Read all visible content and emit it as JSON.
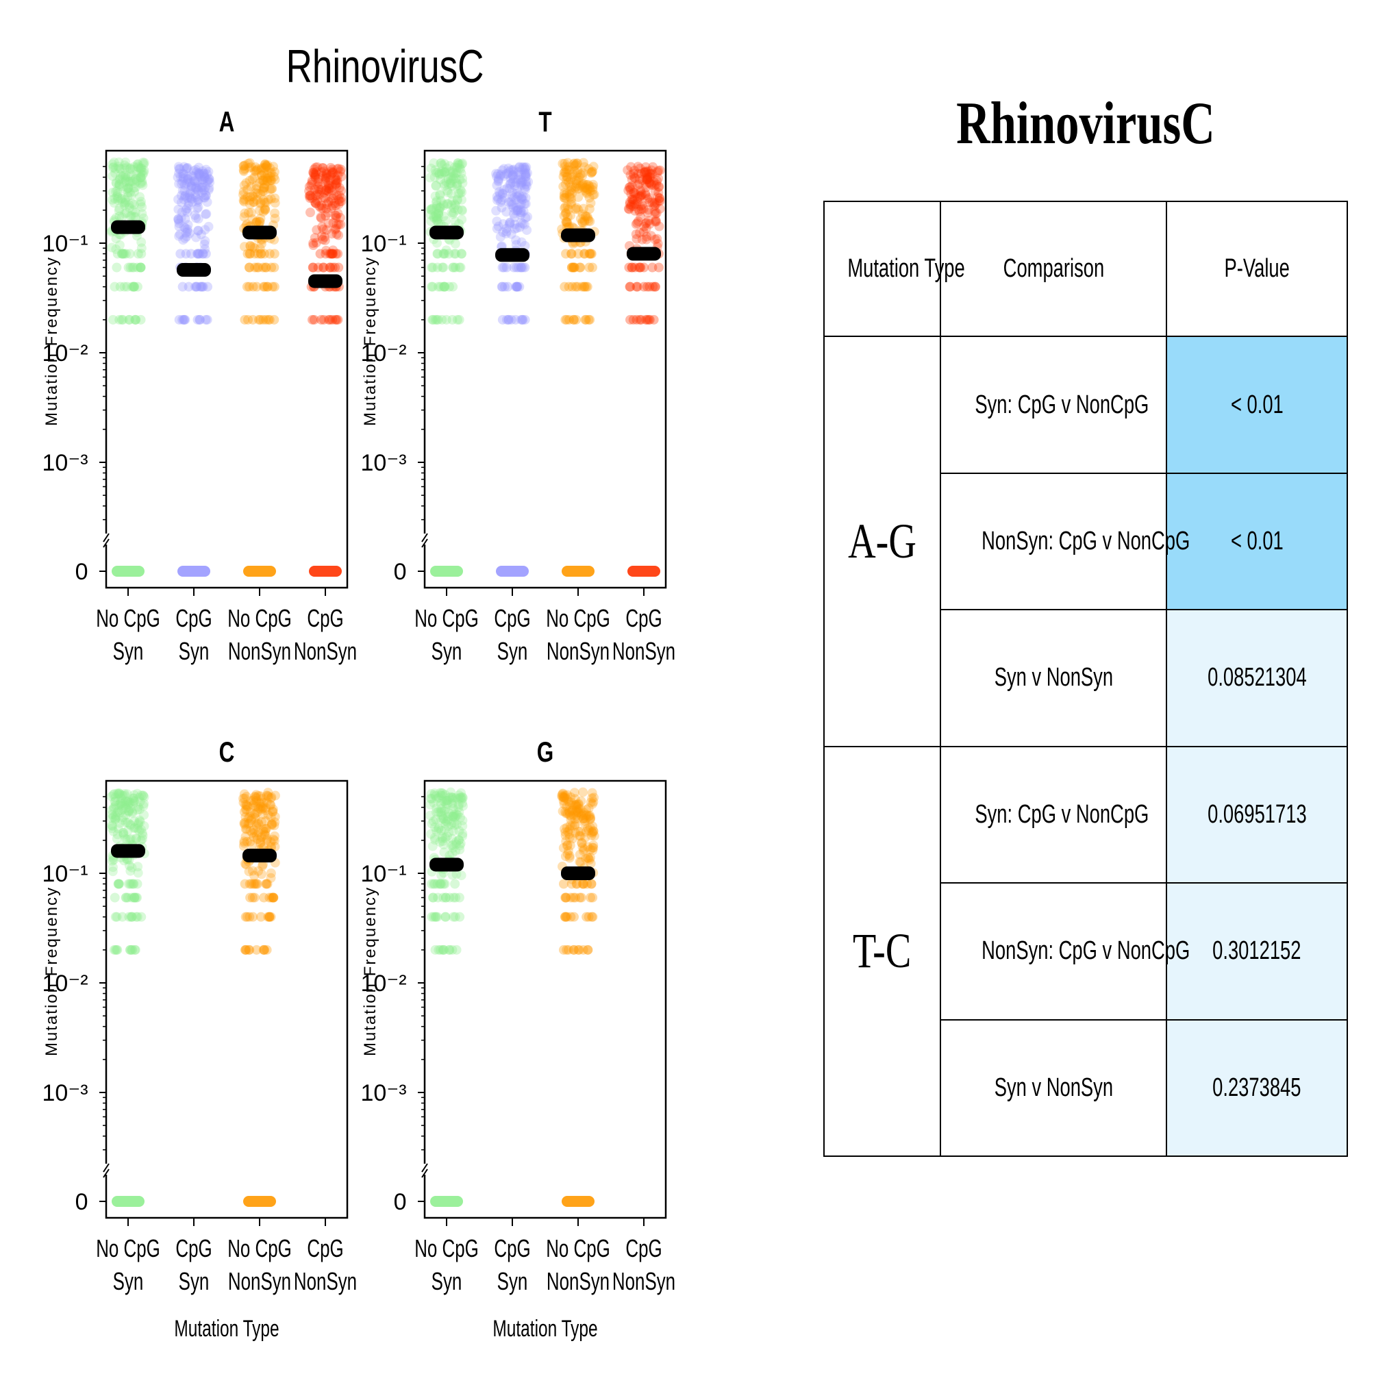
{
  "figure_title": "RhinovirusC",
  "chart_data": [
    {
      "type": "scatter",
      "title": "A",
      "ylabel": "Mutation Frequency",
      "xlabel": "",
      "yscale": "log",
      "ylim": [
        0.0002,
        0.6
      ],
      "y_ticks": [
        {
          "label": "10⁻¹"
        },
        {
          "label": "10⁻²"
        },
        {
          "label": "10⁻³"
        },
        {
          "label": "0"
        }
      ],
      "categories": [
        "No CpG Syn",
        "CpG Syn",
        "No CpG NonSyn",
        "CpG NonSyn"
      ],
      "series": [
        {
          "name": "No CpG Syn",
          "color": "#90ee90",
          "median": 0.14,
          "range": [
            0.02,
            0.55
          ],
          "has_zero": true
        },
        {
          "name": "CpG Syn",
          "color": "#9999ff",
          "median": 0.057,
          "range": [
            0.02,
            0.5
          ],
          "has_zero": true
        },
        {
          "name": "No CpG NonSyn",
          "color": "#ff9900",
          "median": 0.125,
          "range": [
            0.02,
            0.55
          ],
          "has_zero": true
        },
        {
          "name": "CpG NonSyn",
          "color": "#ff3300",
          "median": 0.045,
          "range": [
            0.02,
            0.5
          ],
          "has_zero": true
        }
      ]
    },
    {
      "type": "scatter",
      "title": "T",
      "ylabel": "Mutation Frequency",
      "xlabel": "",
      "yscale": "log",
      "ylim": [
        0.0002,
        0.6
      ],
      "y_ticks": [
        {
          "label": "10⁻¹"
        },
        {
          "label": "10⁻²"
        },
        {
          "label": "10⁻³"
        },
        {
          "label": "0"
        }
      ],
      "categories": [
        "No CpG Syn",
        "CpG Syn",
        "No CpG NonSyn",
        "CpG NonSyn"
      ],
      "series": [
        {
          "name": "No CpG Syn",
          "color": "#90ee90",
          "median": 0.125,
          "range": [
            0.02,
            0.55
          ],
          "has_zero": true
        },
        {
          "name": "CpG Syn",
          "color": "#9999ff",
          "median": 0.078,
          "range": [
            0.02,
            0.5
          ],
          "has_zero": true
        },
        {
          "name": "No CpG NonSyn",
          "color": "#ff9900",
          "median": 0.118,
          "range": [
            0.02,
            0.55
          ],
          "has_zero": true
        },
        {
          "name": "CpG NonSyn",
          "color": "#ff3300",
          "median": 0.08,
          "range": [
            0.02,
            0.5
          ],
          "has_zero": true
        }
      ]
    },
    {
      "type": "scatter",
      "title": "C",
      "ylabel": "Mutation Frequency",
      "xlabel": "Mutation Type",
      "yscale": "log",
      "ylim": [
        0.0002,
        0.6
      ],
      "y_ticks": [
        {
          "label": "10⁻¹"
        },
        {
          "label": "10⁻²"
        },
        {
          "label": "10⁻³"
        },
        {
          "label": "0"
        }
      ],
      "categories": [
        "No CpG Syn",
        "CpG Syn",
        "No CpG NonSyn",
        "CpG NonSyn"
      ],
      "series": [
        {
          "name": "No CpG Syn",
          "color": "#90ee90",
          "median": 0.16,
          "range": [
            0.02,
            0.55
          ],
          "has_zero": true
        },
        {
          "name": "CpG Syn",
          "color": "#9999ff",
          "median": null,
          "range": null,
          "has_zero": false
        },
        {
          "name": "No CpG NonSyn",
          "color": "#ff9900",
          "median": 0.145,
          "range": [
            0.02,
            0.55
          ],
          "has_zero": true
        },
        {
          "name": "CpG NonSyn",
          "color": "#ff3300",
          "median": null,
          "range": null,
          "has_zero": false
        }
      ]
    },
    {
      "type": "scatter",
      "title": "G",
      "ylabel": "Mutation Frequency",
      "xlabel": "Mutation Type",
      "yscale": "log",
      "ylim": [
        0.0002,
        0.6
      ],
      "y_ticks": [
        {
          "label": "10⁻¹"
        },
        {
          "label": "10⁻²"
        },
        {
          "label": "10⁻³"
        },
        {
          "label": "0"
        }
      ],
      "categories": [
        "No CpG Syn",
        "CpG Syn",
        "No CpG NonSyn",
        "CpG NonSyn"
      ],
      "series": [
        {
          "name": "No CpG Syn",
          "color": "#90ee90",
          "median": 0.12,
          "range": [
            0.02,
            0.55
          ],
          "has_zero": true
        },
        {
          "name": "CpG Syn",
          "color": "#9999ff",
          "median": null,
          "range": null,
          "has_zero": false
        },
        {
          "name": "No CpG NonSyn",
          "color": "#ff9900",
          "median": 0.1,
          "range": [
            0.02,
            0.55
          ],
          "has_zero": true
        },
        {
          "name": "CpG NonSyn",
          "color": "#ff3300",
          "median": null,
          "range": null,
          "has_zero": false
        }
      ]
    }
  ],
  "table": {
    "title": "RhinovirusC",
    "headers": [
      "Mutation Type",
      "Comparison",
      "P-Value"
    ],
    "groups": [
      {
        "name": "A-G",
        "rows": [
          {
            "comparison": "Syn: CpG v NonCpG",
            "pvalue": "< 0.01",
            "color": "#99dbfa"
          },
          {
            "comparison": "NonSyn: CpG v NonCpG",
            "pvalue": "< 0.01",
            "color": "#99dbfa"
          },
          {
            "comparison": "Syn v NonSyn",
            "pvalue": "0.08521304",
            "color": "#e6f5fd"
          }
        ]
      },
      {
        "name": "T-C",
        "rows": [
          {
            "comparison": "Syn: CpG v NonCpG",
            "pvalue": "0.06951713",
            "color": "#e6f5fd"
          },
          {
            "comparison": "NonSyn: CpG v NonCpG",
            "pvalue": "0.3012152",
            "color": "#e6f5fd"
          },
          {
            "comparison": "Syn v NonSyn",
            "pvalue": "0.2373845",
            "color": "#e6f5fd"
          }
        ]
      }
    ]
  }
}
